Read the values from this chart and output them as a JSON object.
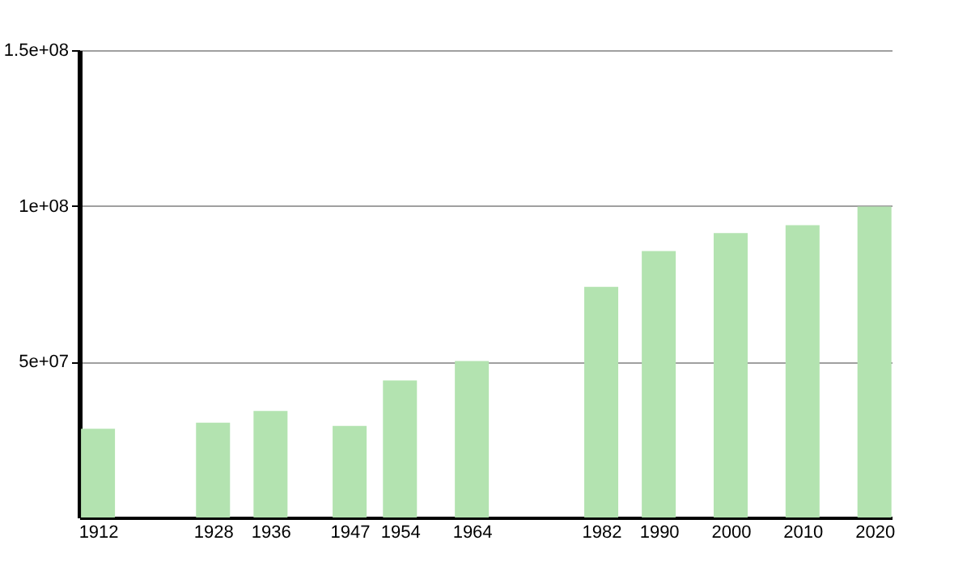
{
  "chart_data": {
    "type": "bar",
    "x": [
      1912,
      1928,
      1936,
      1947,
      1954,
      1964,
      1982,
      1990,
      2000,
      2010,
      2020
    ],
    "values": [
      28500000,
      30400000,
      34200000,
      29400000,
      44000000,
      50200000,
      74000000,
      85500000,
      91300000,
      93800000,
      99800000
    ],
    "color": "#b3e3b0",
    "xlim": [
      1909.4,
      2022.4
    ],
    "xticks": [
      1912,
      1928,
      1936,
      1947,
      1954,
      1964,
      1982,
      1990,
      2000,
      2010,
      2020
    ],
    "ylim": [
      0,
      150000000
    ],
    "yticks": [
      {
        "value": 50000000,
        "label": "5e+07"
      },
      {
        "value": 100000000,
        "label": "1e+08"
      },
      {
        "value": 150000000,
        "label": "1.5e+08"
      }
    ],
    "grid": "y"
  }
}
